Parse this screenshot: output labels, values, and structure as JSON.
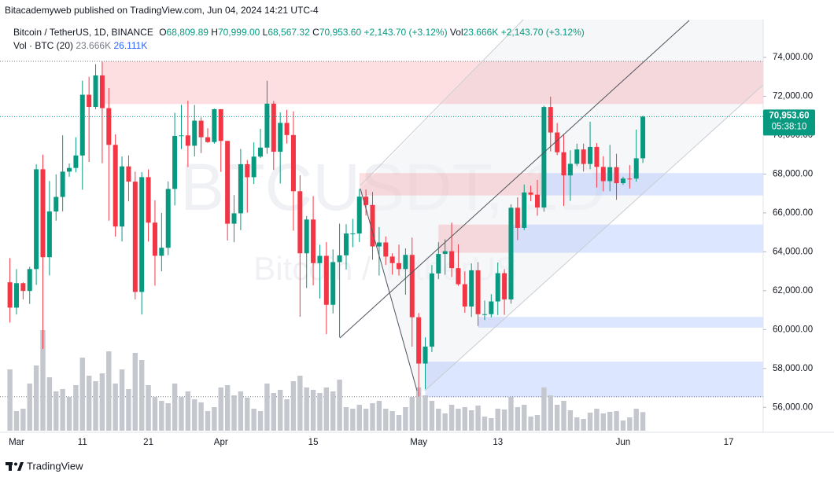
{
  "header": "Bitacademyweb published on TradingView.com, Jun 04, 2024 14:21 UTC-4",
  "footer": "TradingView",
  "chart_data": {
    "type": "candlestick",
    "watermark": "BTCUSDT, 1D",
    "watermark_sub": "Bitcoin / TetherUS",
    "legend": {
      "symbol": "Bitcoin / TetherUS, 1D, BINANCE",
      "items": [
        {
          "key": "O",
          "value": "68,809.89"
        },
        {
          "key": "H",
          "value": "70,999.00"
        },
        {
          "key": "L",
          "value": "68,567.32"
        },
        {
          "key": "C",
          "value": "70,953.60"
        }
      ],
      "change": "+2,143.70 (+3.12%)",
      "volume_key": "Vol",
      "volume_value": "23.666K",
      "volume_change": "+2,143.70 (+3.12%)"
    },
    "volume_legend": {
      "name": "Vol · BTC (20)",
      "value": "23.666K",
      "ma": "26.111K"
    },
    "last_price": {
      "label": "70,953.60",
      "countdown": "05:38:10"
    },
    "categories": [
      null,
      "Mar",
      null,
      null,
      null,
      null,
      null,
      null,
      null,
      null,
      null,
      "11",
      null,
      null,
      null,
      null,
      null,
      null,
      null,
      null,
      null,
      "21",
      null,
      null,
      null,
      null,
      null,
      null,
      null,
      null,
      null,
      null,
      "Apr",
      null,
      null,
      null,
      null,
      null,
      null,
      null,
      null,
      null,
      null,
      null,
      null,
      null,
      "15",
      null,
      null,
      null,
      null,
      null,
      null,
      null,
      null,
      null,
      null,
      null,
      null,
      null,
      null,
      null,
      "May",
      null,
      null,
      null,
      null,
      null,
      null,
      null,
      null,
      null,
      null,
      null,
      "13",
      null,
      null,
      null,
      null,
      null,
      null,
      null,
      null,
      null,
      null,
      null,
      null,
      null,
      null,
      null,
      null,
      null,
      null,
      "Jun",
      null,
      null,
      null,
      null,
      null,
      null,
      null,
      null,
      null,
      null,
      null,
      null,
      null,
      null,
      null,
      "17"
    ],
    "open": [
      62432,
      61130,
      62387,
      61987,
      63113,
      68245,
      63724,
      66074,
      66823,
      68124,
      68313,
      68955,
      72078,
      71452,
      73072,
      71388,
      69499,
      65300,
      68393,
      67609,
      61937,
      67840,
      65501,
      63796,
      64209,
      67234,
      69958,
      69987,
      69455,
      70744,
      69892,
      69645,
      71333,
      69702,
      65446,
      65980,
      68508,
      67837,
      68896,
      69360,
      71620,
      69146,
      70631,
      70006,
      67116,
      63924,
      65661,
      63419,
      63793,
      61277,
      63470,
      63818,
      64940,
      64941,
      66837,
      66408,
      64276,
      64481,
      63756,
      63419,
      63113,
      63841,
      60636,
      58254,
      59123,
      62889,
      63891,
      64031,
      63161,
      62334,
      61187,
      63049,
      60792,
      60793,
      61448,
      62901,
      61552,
      66267,
      65231,
      67051,
      66940,
      66278,
      71448,
      70136,
      69122,
      67929,
      68526,
      69265,
      68518,
      69394,
      68366,
      67635,
      68354,
      67530,
      67766,
      67765,
      68809.89,
      null,
      null,
      null,
      null,
      null,
      null,
      null,
      null,
      null,
      null,
      null,
      null,
      null
    ],
    "high": [
      63676,
      63114,
      62433,
      63231,
      68499,
      69000,
      67637,
      67985,
      69990,
      68541,
      69887,
      72800,
      73000,
      73650,
      73777,
      72419,
      70043,
      68904,
      68957,
      68124,
      68100,
      68240,
      66650,
      65999,
      67622,
      71150,
      71561,
      71769,
      71552,
      70913,
      70355,
      71366,
      71342,
      69708,
      66914,
      69291,
      68725,
      69629,
      70327,
      72797,
      71758,
      71172,
      71305,
      71227,
      67931,
      65840,
      66867,
      64365,
      64499,
      64125,
      65450,
      65419,
      65695,
      67233,
      67199,
      67075,
      65275,
      64789,
      63923,
      64370,
      64174,
      64735,
      60850,
      59602,
      63320,
      64494,
      64646,
      65500,
      64390,
      62995,
      63404,
      63469,
      61490,
      61818,
      63450,
      63102,
      66444,
      66800,
      67459,
      67400,
      67700,
      71515,
      71979,
      70623,
      70041,
      69220,
      69563,
      69562,
      70687,
      69590,
      68915,
      69500,
      69044,
      67861,
      68460,
      70288,
      70999.0,
      null,
      null,
      null,
      null,
      null,
      null,
      null,
      null,
      null,
      null,
      null,
      null,
      null
    ],
    "low": [
      60364,
      60777,
      61561,
      61320,
      62300,
      59005,
      62787,
      65600,
      66082,
      67861,
      68094,
      67194,
      68620,
      71334,
      68555,
      65600,
      64780,
      64533,
      66594,
      61555,
      60775,
      64529,
      62260,
      63000,
      63825,
      66385,
      69280,
      68359,
      68903,
      69076,
      69601,
      69562,
      68110,
      64586,
      64493,
      65113,
      66011,
      67491,
      68824,
      69043,
      68210,
      67518,
      69567,
      65086,
      60660,
      62134,
      62274,
      61600,
      59768,
      60833,
      59600,
      63090,
      64237,
      64500,
      65864,
      63589,
      62783,
      63322,
      62824,
      62781,
      61795,
      59120,
      56552,
      56937,
      58848,
      62599,
      62822,
      62700,
      62250,
      60866,
      60648,
      60187,
      60492,
      60632,
      60749,
      60760,
      61330,
      64600,
      65120,
      66600,
      65857,
      66060,
      69162,
      68977,
      66356,
      66622,
      68410,
      68128,
      68250,
      67300,
      67113,
      67118,
      66670,
      67445,
      67257,
      67612,
      68567.32,
      null,
      null,
      null,
      null,
      null,
      null,
      null,
      null,
      null,
      null,
      null,
      null,
      null
    ],
    "close": [
      61130,
      62387,
      61987,
      63113,
      68245,
      63724,
      66074,
      66823,
      68124,
      68313,
      68955,
      72078,
      71452,
      73072,
      71388,
      69499,
      65300,
      68393,
      67609,
      61937,
      67840,
      65501,
      63796,
      64209,
      67234,
      69958,
      69987,
      69455,
      70744,
      69892,
      69645,
      71333,
      69702,
      65446,
      65980,
      68508,
      67837,
      68896,
      69360,
      71620,
      69146,
      70631,
      70006,
      67116,
      63924,
      65661,
      63419,
      63793,
      61277,
      63470,
      63818,
      64940,
      64941,
      66837,
      66408,
      64276,
      64481,
      63756,
      63419,
      63113,
      63841,
      60636,
      58254,
      59123,
      62889,
      63891,
      64031,
      63161,
      62334,
      61187,
      63049,
      60792,
      60793,
      61448,
      62901,
      61552,
      66267,
      65231,
      67051,
      66940,
      66278,
      71448,
      70136,
      69122,
      67929,
      68526,
      69265,
      68518,
      69394,
      68366,
      67635,
      68354,
      67530,
      67766,
      67765,
      68809.89,
      70953.6,
      null,
      null,
      null,
      null,
      null,
      null,
      null,
      null,
      null,
      null,
      null,
      null,
      null
    ],
    "volume": [
      78,
      25,
      28,
      60,
      83,
      128,
      68,
      50,
      53,
      43,
      58,
      93,
      70,
      63,
      73,
      101,
      60,
      78,
      53,
      99,
      90,
      58,
      43,
      38,
      35,
      60,
      43,
      50,
      40,
      36,
      25,
      30,
      55,
      58,
      45,
      50,
      42,
      28,
      25,
      60,
      48,
      52,
      40,
      63,
      70,
      55,
      52,
      48,
      55,
      50,
      65,
      30,
      28,
      33,
      28,
      35,
      38,
      28,
      25,
      20,
      30,
      43,
      55,
      45,
      38,
      28,
      22,
      33,
      28,
      30,
      26,
      32,
      18,
      16,
      28,
      27,
      43,
      30,
      33,
      18,
      20,
      55,
      45,
      33,
      38,
      26,
      17,
      15,
      23,
      28,
      22,
      24,
      25,
      13,
      17,
      28,
      23.666,
      null,
      null,
      null,
      null,
      null,
      null,
      null,
      null,
      null,
      null,
      null,
      null,
      null
    ],
    "up_color": "#089981",
    "down_color": "#f23645",
    "volume_color": "#c5c7ce",
    "ylim": [
      54800,
      75940
    ],
    "yticks": [
      {
        "value": 56000,
        "label": "56,000.00"
      },
      {
        "value": 58000,
        "label": "58,000.00"
      },
      {
        "value": 60000,
        "label": "60,000.00"
      },
      {
        "value": 62000,
        "label": "62,000.00"
      },
      {
        "value": 64000,
        "label": "64,000.00"
      },
      {
        "value": 66000,
        "label": "66,000.00"
      },
      {
        "value": 68000,
        "label": "68,000.00"
      },
      {
        "value": 70000,
        "label": "70,000.00"
      },
      {
        "value": 72000,
        "label": "72,000.00"
      },
      {
        "value": 74000,
        "label": "74,000.00"
      }
    ],
    "zones": [
      {
        "low": 71600,
        "high": 73800,
        "color": "rgba(242,54,69,0.16)"
      },
      {
        "low": 66900,
        "high": 68050,
        "color": "rgba(242,54,69,0.16)"
      },
      {
        "low": 66900,
        "high": 68050,
        "color": "rgba(41,98,255,0.16)"
      },
      {
        "low": 63950,
        "high": 65400,
        "color": "rgba(242,54,69,0.16)"
      },
      {
        "low": 63950,
        "high": 65400,
        "color": "rgba(41,98,255,0.16)"
      },
      {
        "low": 60100,
        "high": 60650,
        "color": "rgba(41,98,255,0.16)"
      },
      {
        "low": 56520,
        "high": 58350,
        "color": "rgba(41,98,255,0.16)"
      }
    ],
    "levels": [
      73800,
      56550
    ]
  }
}
